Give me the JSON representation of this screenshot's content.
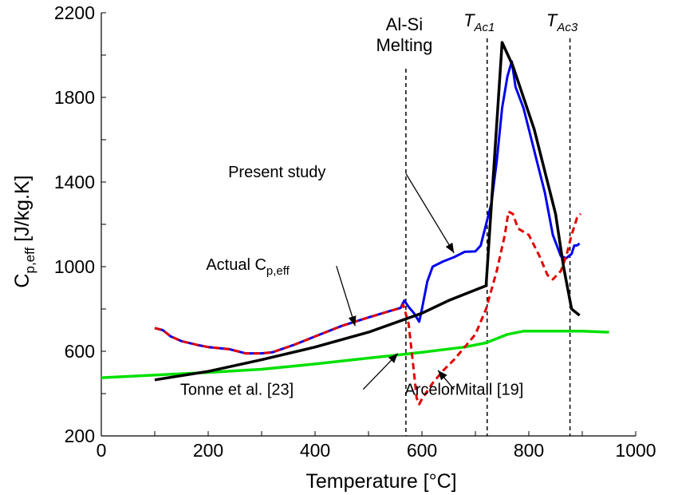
{
  "chart_data": {
    "type": "line",
    "xlabel": "Temperature [°C]",
    "ylabel": {
      "base": "C",
      "sub": "p,eff",
      "rest": " [J/kg.K]"
    },
    "xlim": [
      0,
      1000
    ],
    "ylim": [
      200,
      2200
    ],
    "xticks": [
      0,
      200,
      400,
      600,
      800,
      1000
    ],
    "yticks": [
      200,
      600,
      1000,
      1400,
      1800,
      2200
    ],
    "grid": false,
    "series": [
      {
        "color": "#00e000",
        "width": 3.5,
        "dash": "none",
        "points": [
          [
            0,
            475
          ],
          [
            200,
            500
          ],
          [
            300,
            515
          ],
          [
            400,
            540
          ],
          [
            500,
            568
          ],
          [
            600,
            595
          ],
          [
            680,
            620
          ],
          [
            720,
            640
          ],
          [
            760,
            680
          ],
          [
            790,
            695
          ],
          [
            900,
            695
          ],
          [
            950,
            690
          ]
        ]
      },
      {
        "color": "#0000ee",
        "width": 3,
        "dash": "none",
        "points": [
          [
            100,
            710
          ],
          [
            115,
            700
          ],
          [
            130,
            670
          ],
          [
            150,
            648
          ],
          [
            180,
            630
          ],
          [
            200,
            620
          ],
          [
            240,
            610
          ],
          [
            270,
            590
          ],
          [
            300,
            590
          ],
          [
            320,
            595
          ],
          [
            360,
            630
          ],
          [
            400,
            670
          ],
          [
            450,
            720
          ],
          [
            500,
            760
          ],
          [
            540,
            790
          ],
          [
            560,
            805
          ],
          [
            567,
            840
          ],
          [
            575,
            810
          ],
          [
            585,
            780
          ],
          [
            595,
            740
          ],
          [
            600,
            800
          ],
          [
            610,
            930
          ],
          [
            620,
            1000
          ],
          [
            640,
            1025
          ],
          [
            660,
            1045
          ],
          [
            680,
            1070
          ],
          [
            700,
            1072
          ],
          [
            710,
            1100
          ],
          [
            715,
            1150
          ],
          [
            720,
            1200
          ],
          [
            730,
            1300
          ],
          [
            740,
            1500
          ],
          [
            750,
            1750
          ],
          [
            760,
            1900
          ],
          [
            768,
            1970
          ],
          [
            775,
            1850
          ],
          [
            790,
            1750
          ],
          [
            800,
            1650
          ],
          [
            815,
            1500
          ],
          [
            830,
            1350
          ],
          [
            845,
            1150
          ],
          [
            860,
            1050
          ],
          [
            870,
            1040
          ],
          [
            880,
            1060
          ],
          [
            885,
            1100
          ],
          [
            890,
            1100
          ],
          [
            895,
            1110
          ]
        ]
      },
      {
        "color": "#e00000",
        "width": 3,
        "dash": "8,5",
        "points": [
          [
            100,
            710
          ],
          [
            115,
            700
          ],
          [
            130,
            670
          ],
          [
            150,
            648
          ],
          [
            180,
            630
          ],
          [
            200,
            620
          ],
          [
            240,
            610
          ],
          [
            270,
            590
          ],
          [
            300,
            590
          ],
          [
            320,
            595
          ],
          [
            360,
            630
          ],
          [
            400,
            670
          ],
          [
            450,
            720
          ],
          [
            500,
            760
          ],
          [
            540,
            790
          ],
          [
            560,
            805
          ],
          [
            565,
            820
          ],
          [
            575,
            730
          ],
          [
            585,
            500
          ],
          [
            590,
            380
          ],
          [
            595,
            350
          ],
          [
            600,
            375
          ],
          [
            620,
            450
          ],
          [
            640,
            510
          ],
          [
            660,
            560
          ],
          [
            680,
            620
          ],
          [
            700,
            680
          ],
          [
            720,
            800
          ],
          [
            740,
            980
          ],
          [
            755,
            1150
          ],
          [
            762,
            1260
          ],
          [
            770,
            1250
          ],
          [
            780,
            1180
          ],
          [
            800,
            1150
          ],
          [
            820,
            1050
          ],
          [
            835,
            960
          ],
          [
            845,
            940
          ],
          [
            860,
            980
          ],
          [
            870,
            1050
          ],
          [
            880,
            1150
          ],
          [
            890,
            1230
          ],
          [
            897,
            1250
          ]
        ]
      },
      {
        "color": "#000000",
        "width": 3.5,
        "dash": "none",
        "points": [
          [
            100,
            465
          ],
          [
            200,
            505
          ],
          [
            300,
            560
          ],
          [
            400,
            620
          ],
          [
            500,
            690
          ],
          [
            600,
            780
          ],
          [
            650,
            840
          ],
          [
            700,
            890
          ],
          [
            720,
            910
          ],
          [
            750,
            2060
          ],
          [
            770,
            1950
          ],
          [
            790,
            1800
          ],
          [
            810,
            1650
          ],
          [
            830,
            1450
          ],
          [
            850,
            1250
          ],
          [
            865,
            1000
          ],
          [
            880,
            800
          ],
          [
            895,
            770
          ]
        ]
      }
    ],
    "vlines": [
      {
        "x": 570,
        "label_lines": [
          "Al-Si",
          "Melting"
        ]
      },
      {
        "x": 722,
        "label_main": "T",
        "label_sub": "Ac1"
      },
      {
        "x": 877,
        "label_main": "T",
        "label_sub": "Ac3"
      }
    ],
    "annotations": [
      {
        "text": "Present study",
        "label_at": [
          420,
          1450
        ],
        "path": [
          [
            570,
            1440
          ],
          [
            660,
            1065
          ]
        ]
      },
      {
        "text_main": "Actual C",
        "text_sub": "p,eff",
        "label_at": [
          355,
          1012
        ],
        "path": [
          [
            440,
            1003
          ],
          [
            475,
            720
          ]
        ]
      },
      {
        "text": "Tonne et al. [23]",
        "label_at": [
          360,
          420
        ],
        "path": [
          [
            490,
            420
          ],
          [
            555,
            590
          ]
        ]
      },
      {
        "text": "ArcelorMitall [19]",
        "label_at": [
          790,
          420
        ],
        "path": [
          [
            660,
            420
          ],
          [
            630,
            510
          ]
        ]
      }
    ]
  }
}
